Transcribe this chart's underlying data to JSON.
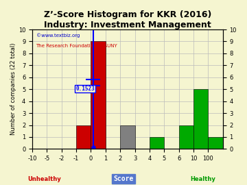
{
  "title": "Z’-Score Histogram for KKR (2016)",
  "subtitle": "Industry: Investment Management",
  "watermark1": "©www.textbiz.org",
  "watermark2": "The Research Foundation of SUNY",
  "xlabel": "Score",
  "ylabel": "Number of companies (22 total)",
  "categories": [
    "-10",
    "-5",
    "-2",
    "-1",
    "0",
    "1",
    "2",
    "3",
    "4",
    "5",
    "6",
    "10",
    "100"
  ],
  "bar_heights": [
    0,
    0,
    0,
    2,
    9,
    0,
    2,
    0,
    1,
    0,
    2,
    5,
    1
  ],
  "bar_colors": [
    "#cc0000",
    "#cc0000",
    "#cc0000",
    "#cc0000",
    "#cc0000",
    "#cc0000",
    "#808080",
    "#808080",
    "#00aa00",
    "#00aa00",
    "#00aa00",
    "#00aa00",
    "#00aa00"
  ],
  "kkr_score_idx": 4.15,
  "kkr_label": "0.1523",
  "ylim": [
    0,
    10
  ],
  "yticks": [
    0,
    1,
    2,
    3,
    4,
    5,
    6,
    7,
    8,
    9,
    10
  ],
  "bg_color": "#f5f5d0",
  "grid_color": "#bbbbbb",
  "unhealthy_color": "#cc0000",
  "healthy_color": "#009900",
  "score_box_color": "#5577cc",
  "tick_fontsize": 6,
  "title_fontsize": 9,
  "ylabel_fontsize": 6,
  "watermark1_color": "#0000cc",
  "watermark2_color": "#cc0000"
}
